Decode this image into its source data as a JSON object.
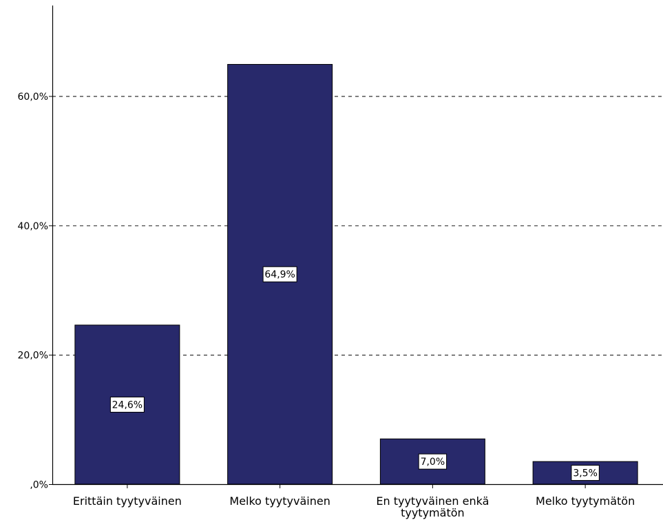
{
  "chart_data": {
    "type": "bar",
    "categories": [
      "Erittäin tyytyväinen",
      "Melko tyytyväinen",
      "En tyytyväinen enkä tyytymätön",
      "Melko tyytymätön"
    ],
    "category_lines": [
      [
        "Erittäin tyytyväinen"
      ],
      [
        "Melko tyytyväinen"
      ],
      [
        "En tyytyväinen enkä",
        "tyytymätön"
      ],
      [
        "Melko tyytymätön"
      ]
    ],
    "values": [
      24.6,
      64.9,
      7.0,
      3.5
    ],
    "data_labels": [
      "24,6%",
      "64,9%",
      "7,0%",
      "3,5%"
    ],
    "y_ticks": [
      0,
      20,
      40,
      60
    ],
    "y_tick_labels": [
      ",0%",
      "20,0%",
      "40,0%",
      "60,0%"
    ],
    "ylim": [
      0,
      74
    ],
    "title": "",
    "xlabel": "",
    "ylabel": "",
    "grid": "horizontal dashed",
    "colors": {
      "bar_fill": "#28296b",
      "bar_stroke": "#000000",
      "grid": "#333333",
      "axis": "#000000",
      "label_bg": "#ffffff"
    }
  }
}
